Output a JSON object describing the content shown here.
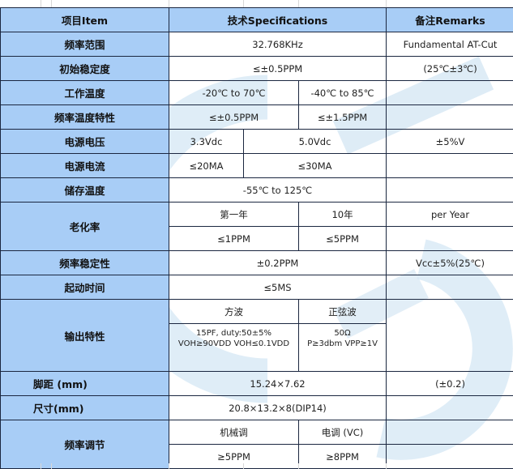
{
  "colors": {
    "header_bg": "#a8cdf6",
    "border": "#1b2740",
    "watermark": "#cfe3f3"
  },
  "header": {
    "item": "项目Item",
    "spec": "技术Specifications",
    "remarks": "备注Remarks"
  },
  "rows": {
    "freq_range": {
      "label": "频率范围",
      "spec": "32.768KHz",
      "remark": "Fundamental AT-Cut"
    },
    "init_stability": {
      "label": "初始稳定度",
      "spec": "≤±0.5PPM",
      "remark": "(25℃±3℃)"
    },
    "op_temp": {
      "label": "工作温度",
      "spec_a": "-20℃ to 70℃",
      "spec_b": "-40℃ to 85℃",
      "remark": ""
    },
    "freq_temp": {
      "label": "频率温度特性",
      "spec_a": "≤±0.5PPM",
      "spec_b": "≤±1.5PPM",
      "remark": ""
    },
    "supply_voltage": {
      "label": "电源电压",
      "spec_a": "3.3Vdc",
      "spec_b": "5.0Vdc",
      "remark": "±5%V"
    },
    "supply_current": {
      "label": "电源电流",
      "spec_a": "≤20MA",
      "spec_b": "≤30MA",
      "remark": ""
    },
    "storage_temp": {
      "label": "储存温度",
      "spec": "-55℃ to 125℃",
      "remark": ""
    },
    "aging": {
      "label": "老化率",
      "h_a": "第一年",
      "h_b": "10年",
      "remark": "per Year",
      "v_a": "≤1PPM",
      "v_b": "≤5PPM"
    },
    "freq_stability": {
      "label": "频率稳定性",
      "spec": "±0.2PPM",
      "remark": "Vcc±5%(25℃)"
    },
    "startup": {
      "label": "起动时间",
      "spec": "≤5MS",
      "remark": ""
    },
    "output": {
      "label": "输出特性",
      "h_a": "方波",
      "h_b": "正弦波",
      "v_a_line1": "15PF, duty:50±5%",
      "v_a_line2": "VOH≥90VDD VOH≤0.1VDD",
      "v_b_line1": "50Ω",
      "v_b_line2": "P≥3dbm VPP≥1V"
    },
    "pin_pitch": {
      "label": "脚距 (mm)",
      "spec": "15.24×7.62",
      "remark": "(±0.2)"
    },
    "size": {
      "label": "尺寸(mm)",
      "spec": "20.8×13.2×8(DIP14)",
      "remark": ""
    },
    "freq_adjust": {
      "label": "频率调节",
      "h_a": "机械调",
      "h_b": "电调 (VC)",
      "v_a": "≥5PPM",
      "v_b": "≥8PPM"
    }
  }
}
